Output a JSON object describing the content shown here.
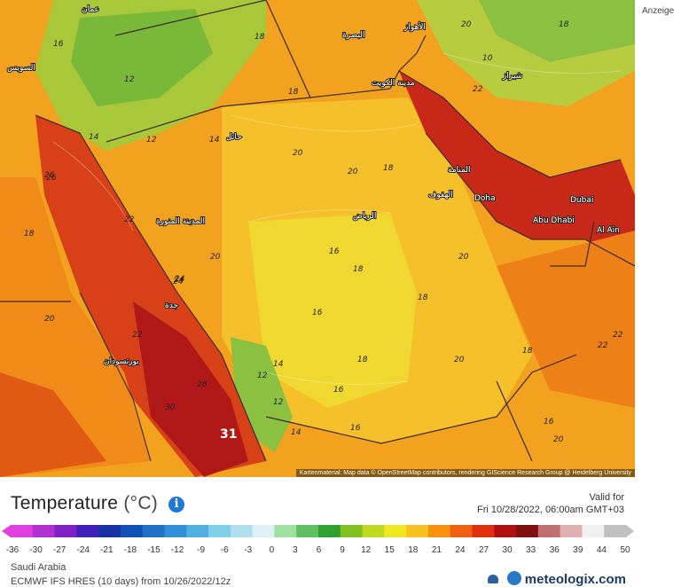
{
  "map": {
    "attribution": "Kartenmaterial: Map data © OpenStreetMap contributors, rendering GIScience Research Group @ Heidelberg University",
    "max_value_label": "31",
    "city_labels": [
      {
        "name": "Doha"
      },
      {
        "name": "Dubai"
      },
      {
        "name": "Abu Dhabi"
      },
      {
        "name": "Al Ain"
      },
      {
        "name": "جدة"
      },
      {
        "name": "الرياض"
      },
      {
        "name": "المدينة المنورة"
      },
      {
        "name": "مدينة الكويت"
      },
      {
        "name": "المنامة"
      },
      {
        "name": "الهفوف"
      },
      {
        "name": "بورتسودان"
      },
      {
        "name": "الأهواز"
      },
      {
        "name": "شيراز"
      },
      {
        "name": "حائل"
      },
      {
        "name": "السويس"
      },
      {
        "name": "عمان"
      },
      {
        "name": "البصرة"
      }
    ],
    "temp_labels": [
      "18",
      "16",
      "12",
      "14",
      "20",
      "22",
      "24",
      "26",
      "18",
      "20",
      "18",
      "16",
      "14",
      "12",
      "18",
      "20",
      "22",
      "24",
      "20",
      "18",
      "16",
      "14",
      "12",
      "16",
      "18",
      "20",
      "22",
      "24",
      "26",
      "28",
      "30",
      "20",
      "18",
      "16",
      "14",
      "12",
      "10",
      "22",
      "20",
      "18",
      "16",
      "18",
      "20",
      "22"
    ]
  },
  "ad_label": "Anzeige",
  "legend": {
    "title": "Temperature",
    "unit": "(°C)",
    "info_icon": "info-icon",
    "valid_label": "Valid for",
    "valid_time": "Fri 10/28/2022, 06:00am GMT+03",
    "ticks": [
      "-36",
      "-30",
      "-27",
      "-24",
      "-21",
      "-18",
      "-15",
      "-12",
      "-9",
      "-6",
      "-3",
      "0",
      "3",
      "6",
      "9",
      "12",
      "15",
      "18",
      "21",
      "24",
      "27",
      "30",
      "33",
      "36",
      "39",
      "44",
      "50"
    ],
    "colors": [
      "#e040e0",
      "#b030d0",
      "#8020c8",
      "#4020b8",
      "#1830a8",
      "#1050b8",
      "#2070c8",
      "#3090d8",
      "#50b0e0",
      "#80d0e8",
      "#b0e0f0",
      "#e0f0f8",
      "#a0e0a0",
      "#60c060",
      "#30a030",
      "#80c020",
      "#c0d820",
      "#f0e820",
      "#f8c020",
      "#f89010",
      "#f06010",
      "#e03010",
      "#b01010",
      "#801010",
      "#c07070",
      "#e0b0b0",
      "#f0f0f0",
      "#c0c0c0"
    ]
  },
  "region": "Saudi Arabia",
  "model": "ECMWF IFS HRES (10 days) from 10/26/2022/12z",
  "brand": "meteologix.com"
}
